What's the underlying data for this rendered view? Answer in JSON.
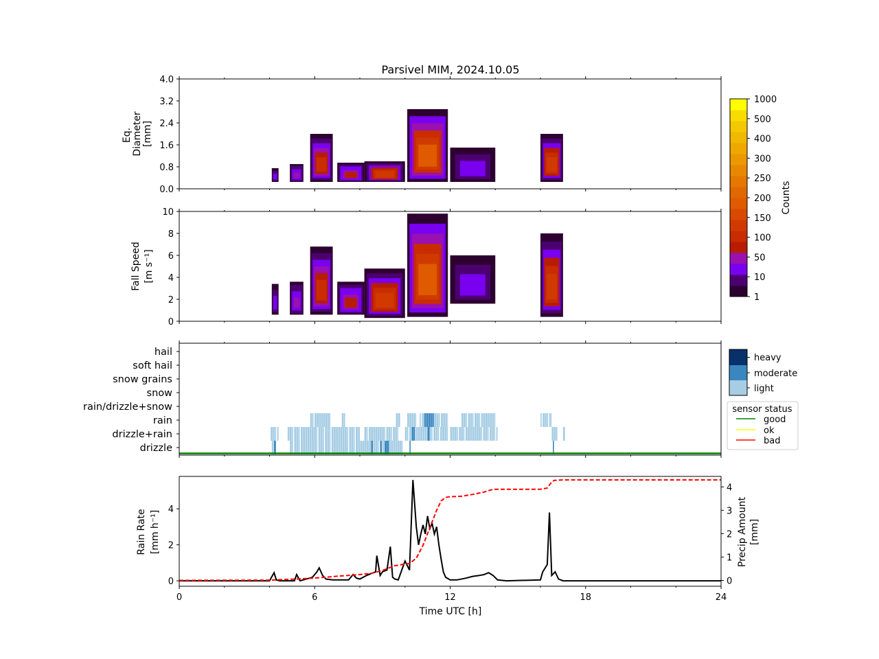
{
  "figure": {
    "title": "Parsivel MIM, 2024.10.05"
  },
  "chart_data": [
    {
      "type": "heatmap",
      "name": "diameter-panel",
      "ylabel_lines": [
        "Eq.",
        "Diameter",
        "[mm]"
      ],
      "xlim": [
        0,
        24
      ],
      "ylim": [
        0.0,
        4.0
      ],
      "yticks": [
        "0.0",
        "0.8",
        "1.6",
        "2.4",
        "3.2",
        "4.0"
      ],
      "ytick_values": [
        0.0,
        0.8,
        1.6,
        2.4,
        3.2,
        4.0
      ],
      "blobs": [
        {
          "t0": 4.1,
          "t1": 4.4,
          "ylo": 0.25,
          "yhi": 0.75,
          "level": 2
        },
        {
          "t0": 4.9,
          "t1": 5.5,
          "ylo": 0.25,
          "yhi": 0.9,
          "level": 3
        },
        {
          "t0": 5.8,
          "t1": 6.8,
          "ylo": 0.25,
          "yhi": 2.0,
          "level": 5
        },
        {
          "t0": 7.0,
          "t1": 8.2,
          "ylo": 0.25,
          "yhi": 0.95,
          "level": 4
        },
        {
          "t0": 8.2,
          "t1": 10.0,
          "ylo": 0.25,
          "yhi": 1.0,
          "level": 6
        },
        {
          "t0": 10.1,
          "t1": 11.9,
          "ylo": 0.25,
          "yhi": 2.9,
          "level": 8
        },
        {
          "t0": 12.0,
          "t1": 14.0,
          "ylo": 0.25,
          "yhi": 1.5,
          "level": 2
        },
        {
          "t0": 16.0,
          "t1": 17.0,
          "ylo": 0.25,
          "yhi": 2.0,
          "level": 6
        }
      ]
    },
    {
      "type": "heatmap",
      "name": "fallspeed-panel",
      "ylabel_lines": [
        "Fall Speed",
        "[m s⁻¹]"
      ],
      "xlim": [
        0,
        24
      ],
      "ylim": [
        0,
        10
      ],
      "yticks": [
        "0",
        "2",
        "4",
        "6",
        "8",
        "10"
      ],
      "ytick_values": [
        0,
        2,
        4,
        6,
        8,
        10
      ],
      "blobs": [
        {
          "t0": 4.1,
          "t1": 4.4,
          "ylo": 0.6,
          "yhi": 3.4,
          "level": 2
        },
        {
          "t0": 4.9,
          "t1": 5.5,
          "ylo": 0.6,
          "yhi": 3.6,
          "level": 3
        },
        {
          "t0": 5.8,
          "t1": 6.8,
          "ylo": 0.6,
          "yhi": 6.8,
          "level": 5
        },
        {
          "t0": 7.0,
          "t1": 8.2,
          "ylo": 0.6,
          "yhi": 3.6,
          "level": 4
        },
        {
          "t0": 8.2,
          "t1": 10.0,
          "ylo": 0.3,
          "yhi": 4.8,
          "level": 6
        },
        {
          "t0": 10.1,
          "t1": 11.9,
          "ylo": 0.4,
          "yhi": 9.8,
          "level": 8
        },
        {
          "t0": 12.0,
          "t1": 14.0,
          "ylo": 1.6,
          "yhi": 6.0,
          "level": 2
        },
        {
          "t0": 16.0,
          "t1": 17.0,
          "ylo": 0.4,
          "yhi": 8.0,
          "level": 6
        }
      ]
    },
    {
      "type": "heatmap",
      "name": "precip-type-panel",
      "categories": [
        "drizzle",
        "drizzle+rain",
        "rain",
        "rain/drizzle+snow",
        "snow",
        "snow grains",
        "soft hail",
        "hail"
      ],
      "xlim": [
        0,
        24
      ],
      "intensity_labels": [
        "heavy",
        "moderate",
        "light"
      ],
      "intensity_colors": {
        "light": "#a6cde4",
        "moderate": "#3a87c0",
        "heavy": "#08306b"
      },
      "status_legend": {
        "title": "sensor status",
        "entries": [
          {
            "label": "good",
            "color": "#008000"
          },
          {
            "label": "ok",
            "color": "#ffff00"
          },
          {
            "label": "bad",
            "color": "#ff0000"
          }
        ]
      },
      "status_line": {
        "status": "good",
        "t0": 0,
        "t1": 24
      },
      "segments": [
        {
          "cat": 2,
          "t0": 5.8,
          "t1": 6.7,
          "i": "light"
        },
        {
          "cat": 2,
          "t0": 7.2,
          "t1": 7.35,
          "i": "light"
        },
        {
          "cat": 2,
          "t0": 9.6,
          "t1": 9.8,
          "i": "light"
        },
        {
          "cat": 2,
          "t0": 10.1,
          "t1": 10.5,
          "i": "light"
        },
        {
          "cat": 2,
          "t0": 10.65,
          "t1": 10.85,
          "i": "light"
        },
        {
          "cat": 2,
          "t0": 10.85,
          "t1": 11.3,
          "i": "moderate"
        },
        {
          "cat": 2,
          "t0": 11.3,
          "t1": 11.9,
          "i": "light"
        },
        {
          "cat": 2,
          "t0": 12.5,
          "t1": 14.0,
          "i": "light"
        },
        {
          "cat": 2,
          "t0": 16.0,
          "t1": 16.5,
          "i": "light"
        },
        {
          "cat": 1,
          "t0": 4.05,
          "t1": 4.4,
          "i": "light"
        },
        {
          "cat": 1,
          "t0": 4.8,
          "t1": 8.0,
          "i": "light"
        },
        {
          "cat": 1,
          "t0": 8.2,
          "t1": 9.7,
          "i": "light"
        },
        {
          "cat": 1,
          "t0": 10.0,
          "t1": 11.9,
          "i": "light"
        },
        {
          "cat": 1,
          "t0": 10.3,
          "t1": 10.45,
          "i": "moderate"
        },
        {
          "cat": 1,
          "t0": 11.0,
          "t1": 11.1,
          "i": "moderate"
        },
        {
          "cat": 1,
          "t0": 12.0,
          "t1": 14.1,
          "i": "light"
        },
        {
          "cat": 1,
          "t0": 16.5,
          "t1": 16.75,
          "i": "light"
        },
        {
          "cat": 1,
          "t0": 17.0,
          "t1": 17.1,
          "i": "light"
        },
        {
          "cat": 0,
          "t0": 4.1,
          "t1": 4.3,
          "i": "light"
        },
        {
          "cat": 0,
          "t0": 4.2,
          "t1": 4.28,
          "i": "moderate"
        },
        {
          "cat": 0,
          "t0": 4.9,
          "t1": 9.9,
          "i": "light"
        },
        {
          "cat": 0,
          "t0": 8.5,
          "t1": 8.58,
          "i": "moderate"
        },
        {
          "cat": 0,
          "t0": 8.9,
          "t1": 8.97,
          "i": "moderate"
        },
        {
          "cat": 0,
          "t0": 9.1,
          "t1": 9.3,
          "i": "moderate"
        },
        {
          "cat": 0,
          "t0": 10.2,
          "t1": 10.3,
          "i": "moderate"
        },
        {
          "cat": 0,
          "t0": 16.55,
          "t1": 16.63,
          "i": "moderate"
        }
      ]
    },
    {
      "type": "line",
      "name": "rainrate-panel",
      "xlabel": "Time UTC [h]",
      "ylabel_lines": [
        "Rain Rate",
        "[mm h⁻¹]"
      ],
      "y2label_lines": [
        "Precip Amount",
        "[mm]"
      ],
      "xlim": [
        0,
        24
      ],
      "xticks": [
        "0",
        "6",
        "12",
        "18",
        "24"
      ],
      "xtick_values": [
        0,
        6,
        12,
        18,
        24
      ],
      "ylim": [
        -0.3,
        5.8
      ],
      "yticks": [
        "0",
        "2",
        "4"
      ],
      "ytick_values": [
        0,
        2,
        4
      ],
      "y2lim": [
        -0.25,
        4.45
      ],
      "y2ticks": [
        "0",
        "1",
        "2",
        "3",
        "4"
      ],
      "y2tick_values": [
        0,
        1,
        2,
        3,
        4
      ],
      "series": [
        {
          "color": "#000000",
          "style": "solid",
          "axis": "left",
          "x": [
            0,
            4.0,
            4.2,
            4.3,
            4.45,
            5.1,
            5.2,
            5.35,
            5.9,
            6.1,
            6.2,
            6.35,
            6.5,
            6.8,
            7.5,
            7.7,
            7.85,
            8.0,
            8.3,
            8.5,
            8.7,
            8.75,
            8.9,
            9.0,
            9.2,
            9.35,
            9.45,
            9.55,
            9.7,
            10.0,
            10.2,
            10.35,
            10.5,
            10.6,
            10.7,
            10.8,
            10.9,
            11.0,
            11.1,
            11.2,
            11.3,
            11.4,
            11.5,
            11.6,
            11.7,
            11.8,
            12.0,
            12.3,
            12.7,
            13.0,
            13.3,
            13.5,
            13.7,
            13.9,
            14.1,
            14.5,
            16.0,
            16.1,
            16.3,
            16.4,
            16.5,
            16.65,
            16.8,
            17.0,
            18,
            24
          ],
          "y": [
            0,
            0,
            0.45,
            0.05,
            0,
            0,
            0.35,
            0,
            0.2,
            0.5,
            0.72,
            0.3,
            0.1,
            0.05,
            0.05,
            0.35,
            0.15,
            0.1,
            0.3,
            0.4,
            0.5,
            1.4,
            0.3,
            0.5,
            0.6,
            1.9,
            0.2,
            0.1,
            0.05,
            1.1,
            0.6,
            5.6,
            3.0,
            2.0,
            2.6,
            3.1,
            2.6,
            3.6,
            2.9,
            3.2,
            2.6,
            3.0,
            2.0,
            1.2,
            0.5,
            0.2,
            0.05,
            0.05,
            0.15,
            0.25,
            0.3,
            0.35,
            0.45,
            0.3,
            0.05,
            0,
            0.05,
            0.5,
            0.9,
            3.8,
            0.3,
            0.5,
            0.1,
            0,
            0,
            0
          ]
        },
        {
          "color": "#ff0000",
          "style": "dashed",
          "axis": "right",
          "x": [
            0,
            4.0,
            5.0,
            6.0,
            7.0,
            8.0,
            8.5,
            9.0,
            9.5,
            10.0,
            10.2,
            10.5,
            10.8,
            11.0,
            11.2,
            11.4,
            11.6,
            11.8,
            12.0,
            12.5,
            13.0,
            13.5,
            13.8,
            14.0,
            15.0,
            16.0,
            16.3,
            16.45,
            16.6,
            17.0,
            24
          ],
          "y": [
            0,
            0.01,
            0.05,
            0.1,
            0.18,
            0.25,
            0.3,
            0.42,
            0.62,
            0.7,
            0.72,
            0.95,
            1.5,
            2.0,
            2.5,
            3.0,
            3.4,
            3.55,
            3.58,
            3.6,
            3.68,
            3.78,
            3.87,
            3.9,
            3.9,
            3.9,
            3.95,
            4.15,
            4.28,
            4.3,
            4.3
          ]
        }
      ]
    }
  ],
  "colorbar": {
    "label": "Counts",
    "tick_labels": [
      "1",
      "10",
      "50",
      "100",
      "150",
      "200",
      "250",
      "300",
      "400",
      "500",
      "1000"
    ],
    "colors": [
      "#2d0030",
      "#4c0070",
      "#7a00f0",
      "#9a10b0",
      "#b81c00",
      "#c82c00",
      "#d03a00",
      "#d84a00",
      "#e05a00",
      "#e06800",
      "#e47800",
      "#e88800",
      "#ec9800",
      "#eea800",
      "#f0b800",
      "#f4c800",
      "#f8dc00",
      "#ffff00"
    ]
  }
}
